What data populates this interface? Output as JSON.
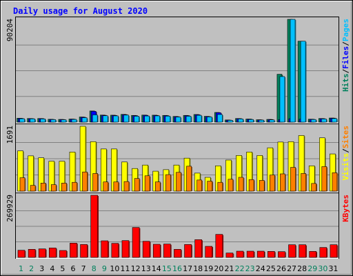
{
  "colors": {
    "background": "#c0c0c0",
    "plot_bg": "#c0c0c0",
    "title": "#0000ff",
    "hits": "#00805c",
    "files": "#0000ff",
    "pages": "#00c0ff",
    "visits": "#ffff00",
    "sites": "#ff8000",
    "kbytes": "#ff0000",
    "weekday_label": "#000000",
    "weekend_label": "#00805c",
    "gridline": "#808080"
  },
  "chart_data": {
    "type": "bar",
    "title": "Daily usage for August 2020",
    "categories": [
      "1",
      "2",
      "3",
      "4",
      "5",
      "6",
      "7",
      "8",
      "9",
      "10",
      "11",
      "12",
      "13",
      "14",
      "15",
      "16",
      "17",
      "18",
      "19",
      "20",
      "21",
      "22",
      "23",
      "24",
      "25",
      "26",
      "27",
      "28",
      "29",
      "30",
      "31"
    ],
    "weekend_days": [
      "1",
      "2",
      "8",
      "9",
      "15",
      "16",
      "22",
      "23",
      "29",
      "30"
    ],
    "panels": [
      {
        "name": "hits-files-pages",
        "max_label": "90204",
        "ylim": [
          0,
          90204
        ],
        "right_labels": [
          {
            "text": "Hits",
            "color": "#00805c"
          },
          {
            "text": "Files",
            "color": "#0000ff"
          },
          {
            "text": "Pages",
            "color": "#00c0ff"
          }
        ],
        "series": [
          {
            "name": "Hits",
            "color": "#00805c",
            "values": [
              3400,
              3200,
              3200,
              2500,
              2400,
              2700,
              4500,
              9800,
              6200,
              6100,
              6800,
              5900,
              6200,
              6100,
              5900,
              5000,
              5900,
              6700,
              5100,
              8500,
              1900,
              3200,
              2700,
              2100,
              2400,
              42000,
              90204,
              71000,
              2600,
              3200,
              3600
            ]
          },
          {
            "name": "Files",
            "color": "#0000ff",
            "values": [
              3300,
              3100,
              3100,
              2400,
              2300,
              2600,
              4300,
              9500,
              6000,
              5900,
              6600,
              5700,
              6000,
              5900,
              5700,
              4800,
              5700,
              6500,
              4900,
              8300,
              1800,
              3100,
              2600,
              2000,
              2300,
              2200,
              3000,
              2600,
              2500,
              3100,
              3500
            ]
          },
          {
            "name": "Pages",
            "color": "#00c0ff",
            "values": [
              3000,
              2900,
              2800,
              2200,
              2100,
              2400,
              3900,
              6400,
              5600,
              5500,
              6200,
              5200,
              5400,
              5500,
              5300,
              4500,
              5200,
              6000,
              4600,
              6700,
              1600,
              2800,
              2300,
              1800,
              2000,
              40000,
              90204,
              71000,
              2300,
              2800,
              3200
            ]
          }
        ]
      },
      {
        "name": "visits-sites",
        "max_label": "1691",
        "ylim": [
          0,
          1691
        ],
        "right_labels": [
          {
            "text": "Visits",
            "color": "#ffff00"
          },
          {
            "text": "Sites",
            "color": "#ff8000"
          }
        ],
        "series": [
          {
            "name": "Visits",
            "color": "#ffff00",
            "values": [
              1050,
              920,
              870,
              780,
              780,
              1020,
              1691,
              1290,
              1100,
              1100,
              760,
              590,
              680,
              520,
              560,
              680,
              860,
              470,
              360,
              660,
              810,
              930,
              1020,
              930,
              1130,
              1280,
              1290,
              1450,
              660,
              1390,
              970
            ]
          },
          {
            "name": "Sites",
            "color": "#ff8000",
            "values": [
              350,
              150,
              210,
              170,
              210,
              230,
              500,
              460,
              240,
              240,
              250,
              330,
              400,
              240,
              430,
              490,
              650,
              290,
              260,
              230,
              310,
              360,
              300,
              280,
              420,
              450,
              620,
              460,
              200,
              640,
              480
            ]
          }
        ]
      },
      {
        "name": "kbytes",
        "max_label": "269929",
        "ylim": [
          0,
          269929
        ],
        "right_labels": [
          {
            "text": "KBytes",
            "color": "#ff0000"
          }
        ],
        "series": [
          {
            "name": "KBytes",
            "color": "#ff0000",
            "values": [
              31000,
              35000,
              37000,
              41000,
              30000,
              62000,
              56000,
              269929,
              72000,
              61000,
              73000,
              130000,
              70000,
              57000,
              58000,
              35000,
              56000,
              77000,
              48000,
              100000,
              19000,
              27000,
              27000,
              27000,
              26000,
              25000,
              55000,
              55000,
              26000,
              43000,
              55000
            ]
          }
        ]
      }
    ]
  }
}
